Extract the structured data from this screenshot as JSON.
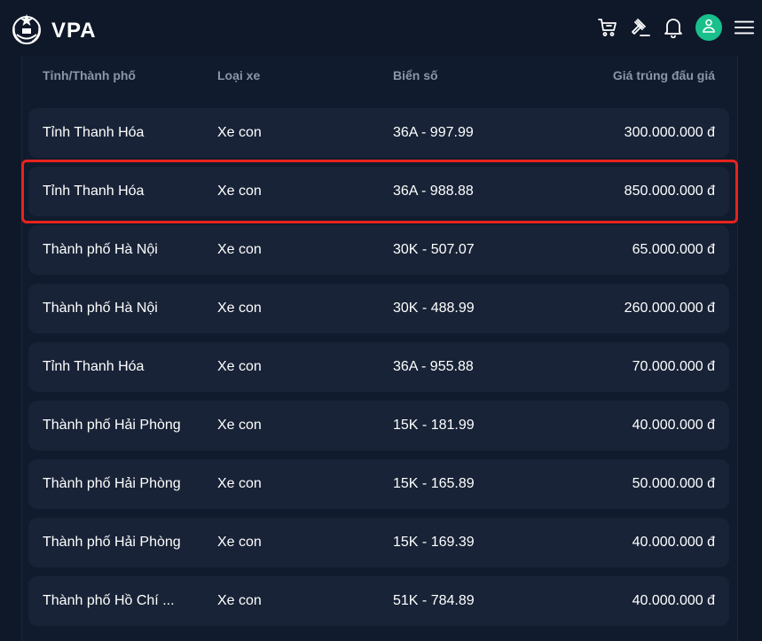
{
  "app": {
    "logo_text": "VPA"
  },
  "table": {
    "headers": {
      "province": "Tỉnh/Thành phố",
      "vehicle_type": "Loại xe",
      "plate": "Biển số",
      "price": "Giá trúng đấu giá"
    },
    "rows": [
      {
        "province": "Tỉnh Thanh Hóa",
        "vehicle_type": "Xe con",
        "plate": "36A - 997.99",
        "price": "300.000.000 đ"
      },
      {
        "province": "Tỉnh Thanh Hóa",
        "vehicle_type": "Xe con",
        "plate": "36A - 988.88",
        "price": "850.000.000 đ"
      },
      {
        "province": "Thành phố Hà Nội",
        "vehicle_type": "Xe con",
        "plate": "30K - 507.07",
        "price": "65.000.000 đ"
      },
      {
        "province": "Thành phố Hà Nội",
        "vehicle_type": "Xe con",
        "plate": "30K - 488.99",
        "price": "260.000.000 đ"
      },
      {
        "province": "Tỉnh Thanh Hóa",
        "vehicle_type": "Xe con",
        "plate": "36A - 955.88",
        "price": "70.000.000 đ"
      },
      {
        "province": "Thành phố Hải Phòng",
        "vehicle_type": "Xe con",
        "plate": "15K - 181.99",
        "price": "40.000.000 đ"
      },
      {
        "province": "Thành phố Hải Phòng",
        "vehicle_type": "Xe con",
        "plate": "15K - 165.89",
        "price": "50.000.000 đ"
      },
      {
        "province": "Thành phố Hải Phòng",
        "vehicle_type": "Xe con",
        "plate": "15K - 169.39",
        "price": "40.000.000 đ"
      },
      {
        "province": "Thành phố Hồ Chí ...",
        "vehicle_type": "Xe con",
        "plate": "51K - 784.89",
        "price": "40.000.000 đ"
      }
    ],
    "highlighted_row": 1
  },
  "colors": {
    "background": "#0f1829",
    "row_background": "#182337",
    "accent_green": "#19c08b",
    "highlight_red": "#e8231d"
  },
  "icons": [
    "emblem-icon",
    "cart-icon",
    "gavel-icon",
    "bell-icon",
    "user-icon",
    "menu-icon"
  ]
}
